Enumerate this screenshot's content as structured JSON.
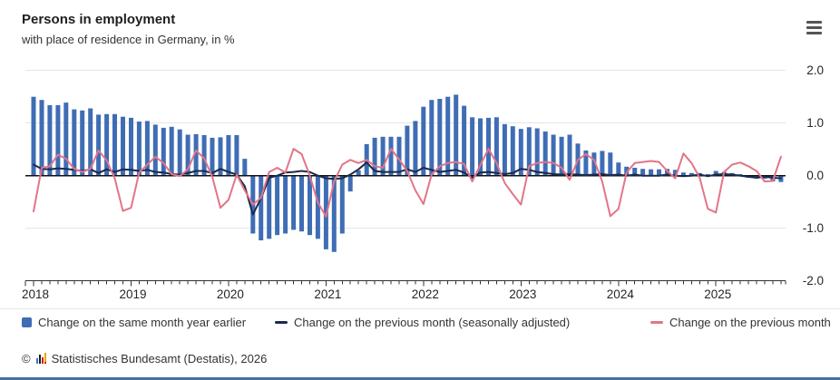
{
  "header": {
    "title": "Persons in employment",
    "subtitle": "with place of residence in Germany, in %"
  },
  "menu": {
    "icon": "hamburger-menu-icon"
  },
  "legend": {
    "items": [
      {
        "label": "Change on the same month year earlier",
        "marker": "square",
        "color": "#3f6db5"
      },
      {
        "label": "Change on the previous month (seasonally adjusted)",
        "marker": "line",
        "color": "#1b2a4d"
      },
      {
        "label": "Change on the previous month",
        "marker": "line",
        "color": "#e27588"
      }
    ]
  },
  "footer": {
    "copyright": "©",
    "logo_icon": "destatis-bars-icon",
    "source": "Statistisches Bundesamt (Destatis), 2026"
  },
  "colors": {
    "bar": "#3f6db5",
    "line_seasonally_adjusted": "#1b2a4d",
    "line_previous_month": "#e27588",
    "grid": "#e5e5e5",
    "zero_line": "#111111",
    "axis": "#333333",
    "text": "#262626",
    "bottom_border": "#44709d"
  },
  "chart_data": {
    "type": "bar",
    "subtype": "bar+line combo, monthly time series",
    "start": "2018-01",
    "end": "2025-09",
    "frequency": "monthly",
    "title": "Persons in employment",
    "subtitle": "with place of residence in Germany, in %",
    "ylabel": "",
    "xlabel": "",
    "ylim": [
      -2,
      2
    ],
    "grid": "horizontal",
    "legend_position": "bottom",
    "x_tick_years": [
      "2018",
      "2019",
      "2020",
      "2021",
      "2022",
      "2023",
      "2024",
      "2025"
    ],
    "y_ticks": [
      {
        "value": 2,
        "label": "2.0"
      },
      {
        "value": 1,
        "label": "1.0"
      },
      {
        "value": 0,
        "label": "0.0"
      },
      {
        "value": -1,
        "label": "-1.0"
      },
      {
        "value": -2,
        "label": "-2.0"
      }
    ],
    "series": [
      {
        "name": "Change on the same month year earlier",
        "type": "bar",
        "color": "#3f6db5",
        "values": [
          1.5,
          1.44,
          1.34,
          1.34,
          1.39,
          1.26,
          1.24,
          1.28,
          1.16,
          1.17,
          1.17,
          1.12,
          1.1,
          1.03,
          1.04,
          0.97,
          0.91,
          0.93,
          0.88,
          0.78,
          0.79,
          0.77,
          0.72,
          0.73,
          0.77,
          0.77,
          0.32,
          -1.1,
          -1.23,
          -1.2,
          -1.13,
          -1.1,
          -1.03,
          -1.06,
          -1.13,
          -1.2,
          -1.4,
          -1.45,
          -1.1,
          -0.3,
          0.1,
          0.6,
          0.72,
          0.74,
          0.74,
          0.74,
          0.95,
          1.04,
          1.31,
          1.44,
          1.46,
          1.5,
          1.54,
          1.33,
          1.11,
          1.09,
          1.1,
          1.11,
          0.98,
          0.94,
          0.89,
          0.92,
          0.9,
          0.84,
          0.78,
          0.74,
          0.78,
          0.61,
          0.48,
          0.44,
          0.47,
          0.44,
          0.25,
          0.17,
          0.15,
          0.13,
          0.12,
          0.12,
          0.13,
          0.11,
          0.06,
          0.05,
          0.05,
          0.03,
          0.09,
          0.07,
          0.05,
          0.03,
          -0.04,
          -0.05,
          -0.06,
          -0.11,
          -0.12
        ]
      },
      {
        "name": "Change on the previous month (seasonally adjusted)",
        "type": "line",
        "color": "#1b2a4d",
        "values": [
          0.21,
          0.13,
          0.12,
          0.14,
          0.13,
          0.11,
          0.09,
          0.12,
          0.05,
          0.12,
          0.07,
          0.12,
          0.11,
          0.09,
          0.11,
          0.07,
          0.06,
          0.03,
          0.02,
          0.05,
          0.09,
          0.09,
          0.05,
          0.13,
          0.07,
          0.02,
          -0.2,
          -0.74,
          -0.43,
          -0.04,
          0.0,
          0.06,
          0.07,
          0.09,
          0.07,
          0.0,
          -0.05,
          -0.06,
          -0.05,
          0.02,
          0.12,
          0.25,
          0.09,
          0.07,
          0.07,
          0.07,
          0.12,
          0.07,
          0.15,
          0.11,
          0.07,
          0.09,
          0.11,
          0.06,
          -0.04,
          0.06,
          0.07,
          0.05,
          0.03,
          0.05,
          0.13,
          0.11,
          0.07,
          0.05,
          0.03,
          0.02,
          0.03,
          0.02,
          0.01,
          0.02,
          0.03,
          0.01,
          0.02,
          0.0,
          0.02,
          0.0,
          0.0,
          0.0,
          0.02,
          0.0,
          -0.01,
          0.0,
          0.02,
          -0.01,
          0.02,
          0.03,
          0.02,
          0.0,
          -0.02,
          -0.04,
          -0.02,
          -0.04,
          -0.05
        ]
      },
      {
        "name": "Change on the previous month",
        "type": "line",
        "color": "#e27588",
        "values": [
          -0.68,
          0.15,
          0.18,
          0.4,
          0.32,
          0.13,
          0.07,
          0.13,
          0.48,
          0.29,
          -0.05,
          -0.67,
          -0.61,
          0.06,
          0.21,
          0.36,
          0.24,
          0.03,
          -0.01,
          0.12,
          0.48,
          0.33,
          -0.02,
          -0.61,
          -0.46,
          0.02,
          -0.28,
          -0.55,
          -0.42,
          0.07,
          0.15,
          0.06,
          0.51,
          0.41,
          0.0,
          -0.51,
          -0.78,
          -0.11,
          0.21,
          0.3,
          0.24,
          0.3,
          0.18,
          0.15,
          0.51,
          0.31,
          0.09,
          -0.28,
          -0.54,
          0.02,
          0.18,
          0.24,
          0.26,
          0.22,
          -0.11,
          0.2,
          0.51,
          0.24,
          -0.14,
          -0.35,
          -0.55,
          0.18,
          0.24,
          0.26,
          0.24,
          0.15,
          -0.08,
          0.3,
          0.41,
          0.3,
          -0.11,
          -0.77,
          -0.63,
          0.06,
          0.24,
          0.26,
          0.28,
          0.26,
          0.09,
          -0.05,
          0.42,
          0.24,
          -0.04,
          -0.63,
          -0.7,
          0.07,
          0.21,
          0.25,
          0.18,
          0.09,
          -0.11,
          -0.1,
          0.36
        ]
      }
    ]
  }
}
